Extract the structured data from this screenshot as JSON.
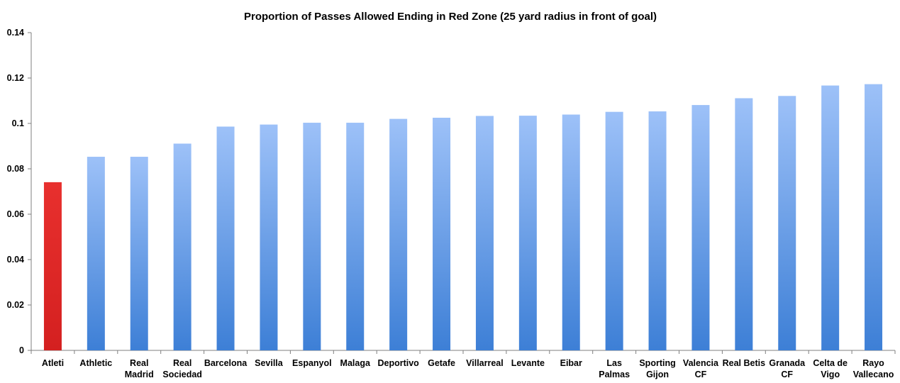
{
  "chart_data": {
    "type": "bar",
    "title": "Proportion of Passes Allowed Ending in Red Zone (25 yard radius in front of goal)",
    "xlabel": "",
    "ylabel": "",
    "ylim": [
      0,
      0.14
    ],
    "yticks": [
      "0",
      "0.02",
      "0.04",
      "0.06",
      "0.08",
      "0.1",
      "0.12",
      "0.14"
    ],
    "grid": false,
    "legend": "none",
    "categories": [
      [
        "Atleti"
      ],
      [
        "Athletic"
      ],
      [
        "Real",
        "Madrid"
      ],
      [
        "Real",
        "Sociedad"
      ],
      [
        "Barcelona"
      ],
      [
        "Sevilla"
      ],
      [
        "Espanyol"
      ],
      [
        "Malaga"
      ],
      [
        "Deportivo"
      ],
      [
        "Getafe"
      ],
      [
        "Villarreal"
      ],
      [
        "Levante"
      ],
      [
        "Eibar"
      ],
      [
        "Las",
        "Palmas"
      ],
      [
        "Sporting",
        "Gijon"
      ],
      [
        "Valencia",
        "CF"
      ],
      [
        "Real Betis"
      ],
      [
        "Granada",
        "CF"
      ],
      [
        "Celta de",
        "Vigo"
      ],
      [
        "Rayo",
        "Vallecano"
      ]
    ],
    "values": [
      0.0741,
      0.0853,
      0.0853,
      0.0911,
      0.0986,
      0.0995,
      0.1003,
      0.1003,
      0.102,
      0.1025,
      0.1033,
      0.1034,
      0.1039,
      0.1051,
      0.1053,
      0.1081,
      0.1111,
      0.1121,
      0.1167,
      0.1173
    ],
    "highlight_index": 0,
    "colors": {
      "highlight_top": "#e8302e",
      "highlight_bottom": "#d42020",
      "bar_top": "#9dc1f8",
      "bar_bottom": "#3d7fd6",
      "axis": "#7f7f7f"
    }
  }
}
